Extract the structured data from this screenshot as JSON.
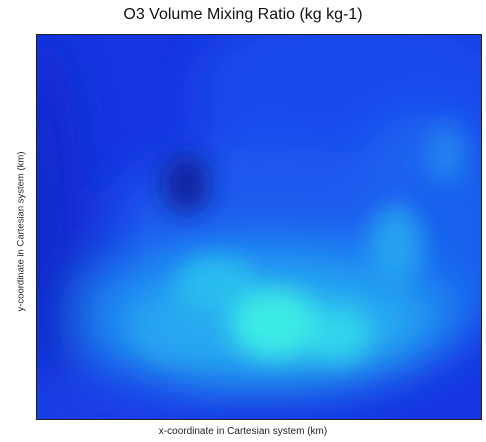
{
  "chart_data": {
    "type": "heatmap",
    "title": "O3 Volume Mixing Ratio (kg kg-1)",
    "xlabel": "x-coordinate in Cartesian system (km)",
    "ylabel": "y-coordinate in Cartesian system (km)",
    "colormap": [
      "#0a1a9c",
      "#1530d8",
      "#1b5cf2",
      "#1f8ff2",
      "#2bc8f0",
      "#3ff2e6"
    ],
    "grid": false,
    "legend": "none"
  }
}
